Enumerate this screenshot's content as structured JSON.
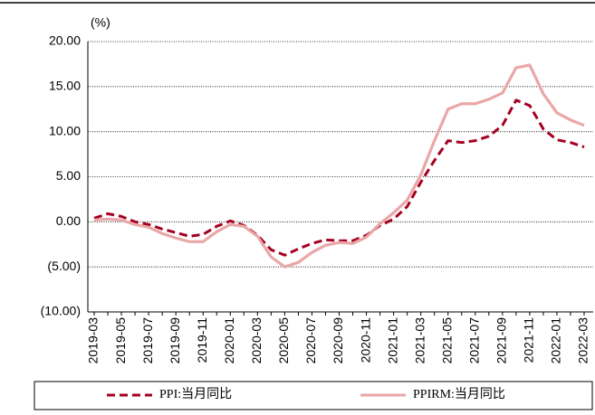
{
  "chart_data": {
    "type": "line",
    "y_axis_label": "(%)",
    "categories": [
      "2019-03",
      null,
      "2019-05",
      null,
      "2019-07",
      null,
      "2019-09",
      null,
      "2019-11",
      null,
      "2020-01",
      null,
      "2020-03",
      null,
      "2020-05",
      null,
      "2020-07",
      null,
      "2020-09",
      null,
      "2020-11",
      null,
      "2021-01",
      null,
      "2021-03",
      null,
      "2021-05",
      null,
      "2021-07",
      null,
      "2021-09",
      null,
      "2021-11",
      null,
      "2022-01",
      null,
      "2022-03"
    ],
    "series": [
      {
        "name": "PPI:当月同比",
        "color": "#a50021",
        "line_style": "dashed",
        "values": [
          0.4,
          0.9,
          0.6,
          0.0,
          -0.3,
          -0.8,
          -1.2,
          -1.6,
          -1.4,
          -0.5,
          0.1,
          -0.4,
          -1.5,
          -3.1,
          -3.7,
          -3.0,
          -2.4,
          -2.0,
          -2.1,
          -2.1,
          -1.5,
          -0.4,
          0.3,
          1.7,
          4.4,
          6.8,
          9.0,
          8.8,
          9.0,
          9.5,
          10.7,
          13.5,
          12.9,
          10.3,
          9.1,
          8.8,
          8.3
        ]
      },
      {
        "name": "PPIRM:当月同比",
        "color": "#eaa7a7",
        "line_style": "solid",
        "values": [
          0.2,
          0.3,
          0.2,
          -0.3,
          -0.6,
          -1.3,
          -1.8,
          -2.2,
          -2.2,
          -1.1,
          -0.3,
          -0.5,
          -1.6,
          -3.9,
          -5.0,
          -4.5,
          -3.4,
          -2.6,
          -2.3,
          -2.4,
          -1.7,
          -0.2,
          1.0,
          2.4,
          5.2,
          9.0,
          12.5,
          13.1,
          13.1,
          13.6,
          14.3,
          17.1,
          17.4,
          14.2,
          12.1,
          11.3,
          10.7
        ]
      }
    ],
    "ylim": [
      -10,
      20
    ],
    "yticks": [
      {
        "value": -10,
        "label": "(10.00)"
      },
      {
        "value": -5,
        "label": "(5.00)"
      },
      {
        "value": 0,
        "label": "0.00"
      },
      {
        "value": 5,
        "label": "5.00"
      },
      {
        "value": 10,
        "label": "10.00"
      },
      {
        "value": 15,
        "label": "15.00"
      },
      {
        "value": 20,
        "label": "20.00"
      }
    ],
    "grid": true,
    "legend": "bottom"
  }
}
